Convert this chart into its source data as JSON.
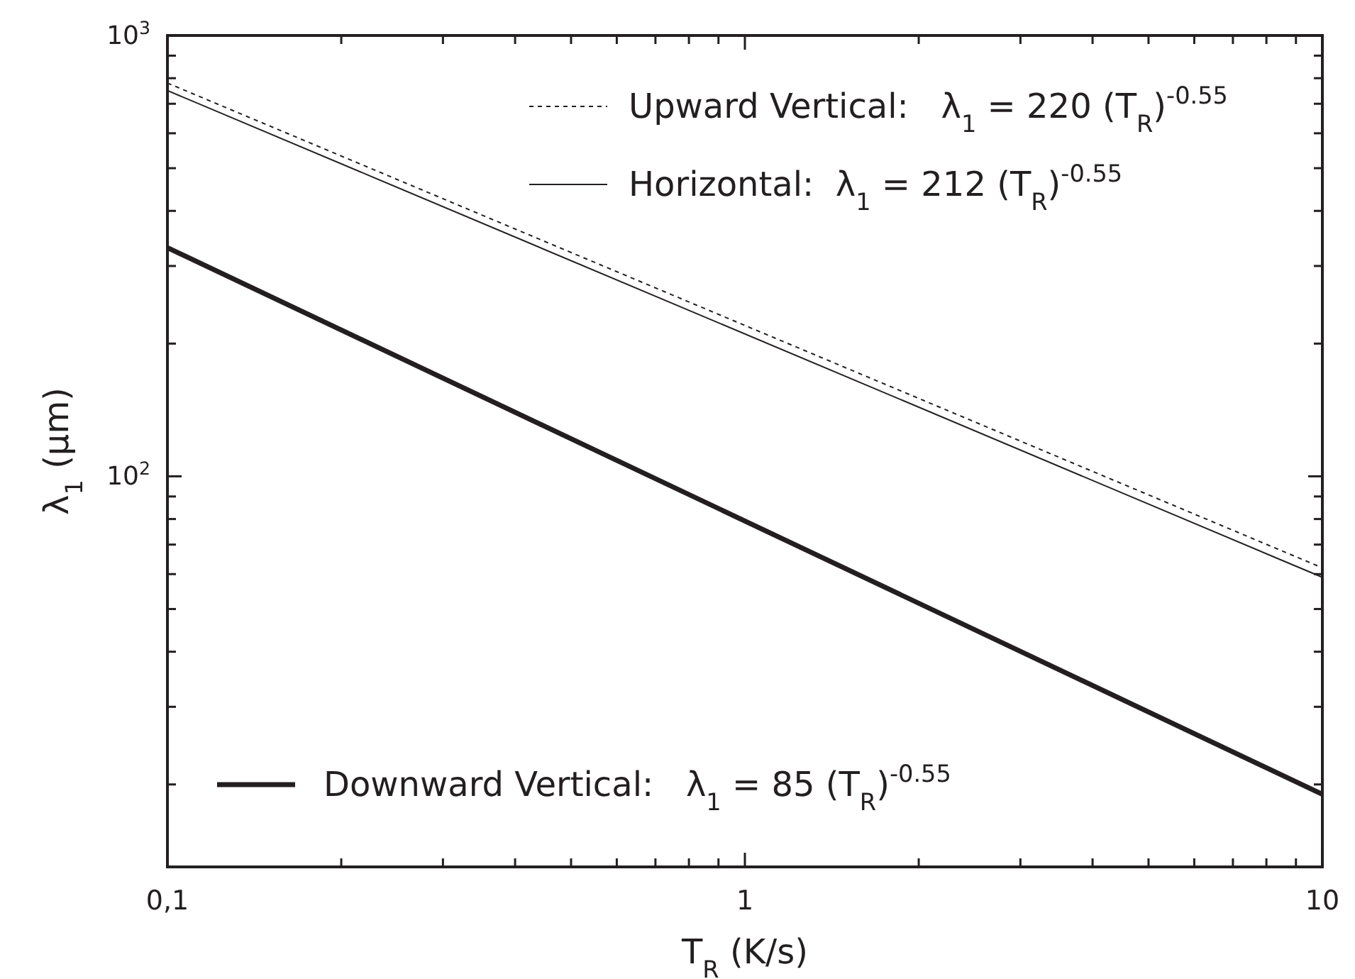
{
  "chart_data": {
    "type": "line",
    "log": "xy",
    "grid": false,
    "legend": "top right",
    "xlabel": "T$_{R}$ (K/s)",
    "ylabel": "λ$_{1}$ (µm)",
    "x": [
      0.1,
      10
    ],
    "xlim": [
      0.1,
      10
    ],
    "ylim": [
      13,
      1000
    ],
    "xticks": [
      {
        "value": 0.1,
        "label": "0,1"
      },
      {
        "value": 0.2,
        "label": null
      },
      {
        "value": 0.3,
        "label": null
      },
      {
        "value": 0.4,
        "label": null
      },
      {
        "value": 0.5,
        "label": null
      },
      {
        "value": 0.6,
        "label": null
      },
      {
        "value": 0.7,
        "label": null
      },
      {
        "value": 0.8,
        "label": null
      },
      {
        "value": 0.9,
        "label": null
      },
      1,
      {
        "value": 2,
        "label": null
      },
      {
        "value": 3,
        "label": null
      },
      {
        "value": 4,
        "label": null
      },
      {
        "value": 5,
        "label": null
      },
      {
        "value": 6,
        "label": null
      },
      {
        "value": 7,
        "label": null
      },
      {
        "value": 8,
        "label": null
      },
      {
        "value": 9,
        "label": null
      },
      10
    ],
    "yticks": [
      {
        "value": 20,
        "label": null
      },
      {
        "value": 30,
        "label": null
      },
      {
        "value": 40,
        "label": null
      },
      {
        "value": 50,
        "label": null
      },
      {
        "value": 60,
        "label": null
      },
      {
        "value": 70,
        "label": null
      },
      {
        "value": 80,
        "label": null
      },
      {
        "value": 90,
        "label": null
      },
      {
        "value": 100,
        "label": "10$^{2}$"
      },
      {
        "value": 200,
        "label": null
      },
      {
        "value": 300,
        "label": null
      },
      {
        "value": 400,
        "label": null
      },
      {
        "value": 500,
        "label": null
      },
      {
        "value": 600,
        "label": null
      },
      {
        "value": 700,
        "label": null
      },
      {
        "value": 800,
        "label": null
      },
      {
        "value": 900,
        "label": null
      },
      {
        "value": 1000,
        "label": "10$^{3}$"
      }
    ],
    "series": [
      {
        "name": "Upward Vertical:   λ$_{1}$ = 220 (T$_{R}$)$^{-0.55}$",
        "color": "#231f20",
        "line_style": "dashed",
        "values": [
          780,
          62
        ]
      },
      {
        "name": "Horizontal:  λ$_{1}$ = 212 (T$_{R}$)$^{-0.55}$",
        "color": "#231f20",
        "line_style": "solid",
        "values": [
          750,
          59
        ]
      },
      {
        "name": "Downward Vertical:   λ$_{1}$ = 85 (T$_{R}$)$^{-0.55}$",
        "color": "#231f20",
        "line_style": "solid",
        "values": [
          330,
          19
        ]
      }
    ]
  }
}
